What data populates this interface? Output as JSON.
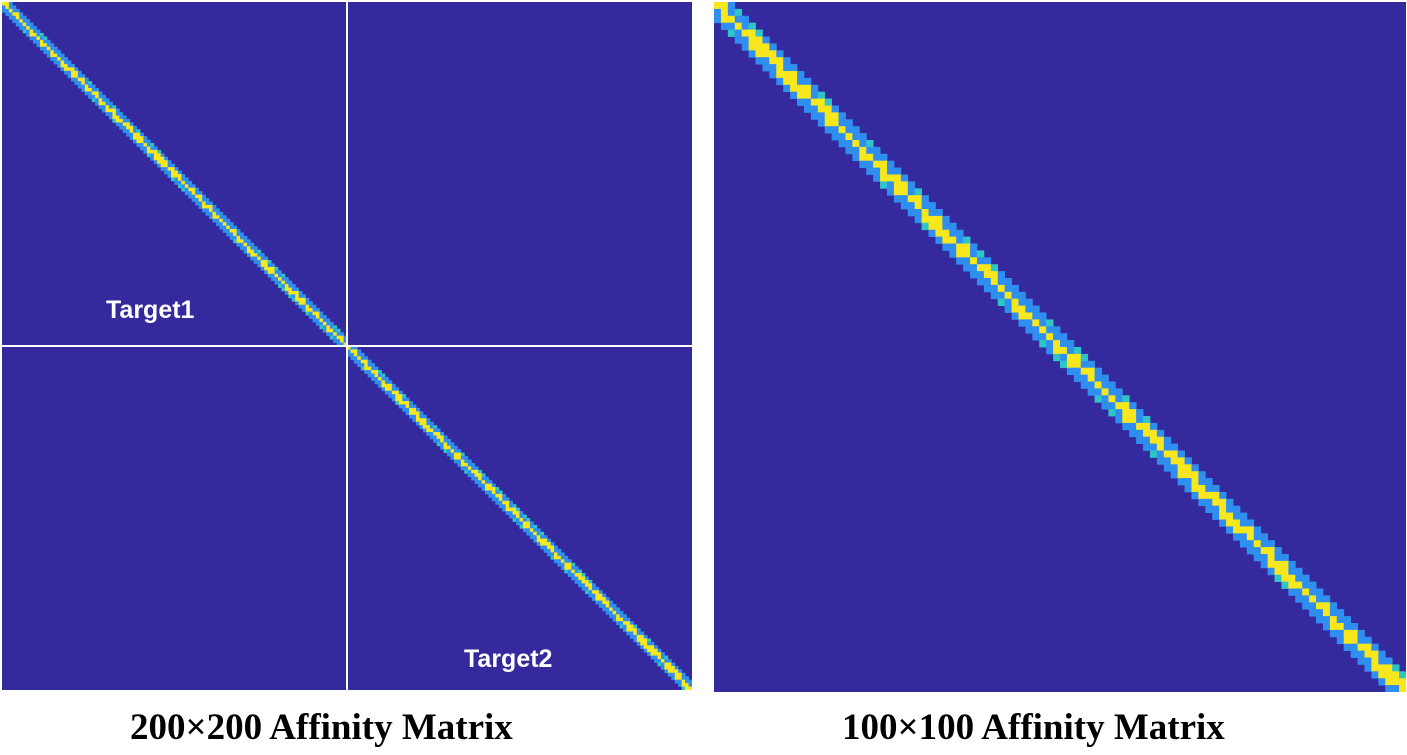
{
  "chart_data": [
    {
      "type": "heatmap",
      "title": "",
      "caption": "200×200 Affinity Matrix",
      "size": 200,
      "block_labels": [
        "Target1",
        "Target2"
      ],
      "block_boundary": 100,
      "diagonal_band_halfwidth": 2,
      "colormap": {
        "low": "#352a9d",
        "mid": "#2f8ff0",
        "cyan": "#2ec5c8",
        "high": "#f8e71c"
      },
      "value_range": [
        0,
        1
      ],
      "grid": false
    },
    {
      "type": "heatmap",
      "title": "",
      "caption": "100×100 Affinity Matrix",
      "size": 100,
      "diagonal_band_halfwidth": 2,
      "colormap": {
        "low": "#352a9d",
        "mid": "#2f8ff0",
        "cyan": "#2ec5c8",
        "high": "#f8e71c"
      },
      "value_range": [
        0,
        1
      ],
      "grid": false
    }
  ]
}
